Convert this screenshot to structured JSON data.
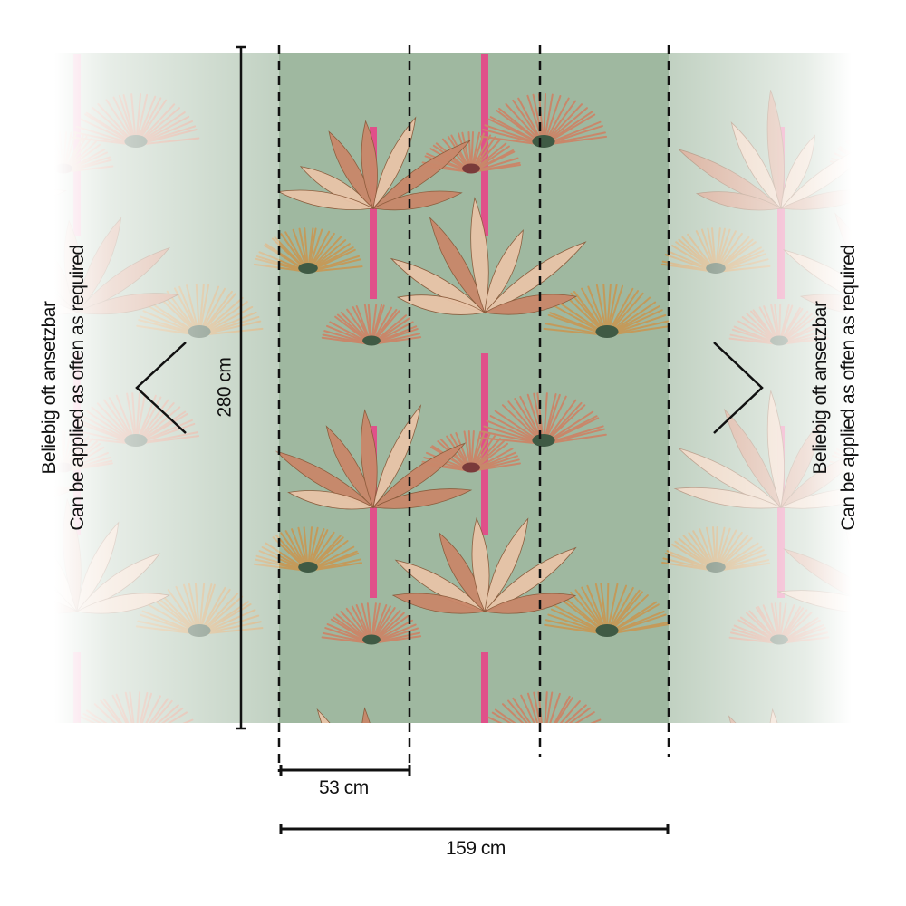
{
  "colors": {
    "background": "#9fb8a0",
    "trunk": "#e0508a",
    "frond_warm": "#c9876a",
    "frond_gold": "#c49a5a",
    "frond_dark": "#3f5a44",
    "leaf_cream": "#e8c4a8",
    "lines": "#111111"
  },
  "left_note": {
    "line1": "Beliebig oft ansetzbar",
    "line2": "Can be applied as often as required"
  },
  "right_note": {
    "line1": "Beliebig oft ansetzbar",
    "line2": "Can be applied as often as required"
  },
  "dimensions": {
    "height": "280 cm",
    "panel_width": "53 cm",
    "total_width": "159 cm"
  },
  "panels": 3,
  "icons": {
    "left": "chevron-left-icon",
    "right": "chevron-right-icon"
  }
}
